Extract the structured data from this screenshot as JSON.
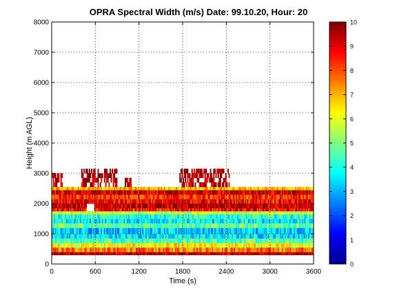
{
  "chart_data": {
    "type": "heatmap",
    "title": "OPRA Spectral Width (m/s)  Date: 99.10.20, Hour: 20",
    "xlabel": "Time (s)",
    "ylabel": "Height (m AGL)",
    "xlim": [
      0,
      3600
    ],
    "ylim": [
      0,
      8000
    ],
    "x_ticks": [
      "0",
      "600",
      "1200",
      "1800",
      "2400",
      "3000",
      "3600"
    ],
    "y_ticks": [
      "0",
      "1000",
      "2000",
      "3000",
      "4000",
      "5000",
      "6000",
      "7000",
      "8000"
    ],
    "grid": true,
    "colormap": "jet",
    "colorbar": {
      "range": [
        0,
        10
      ],
      "ticks": [
        "0",
        "1",
        "2",
        "3",
        "4",
        "5",
        "6",
        "7",
        "8",
        "9",
        "10"
      ]
    },
    "height_bands": [
      {
        "y0": 300,
        "y1": 400,
        "value": 9.5
      },
      {
        "y0": 400,
        "y1": 550,
        "value": 7.6
      },
      {
        "y0": 550,
        "y1": 700,
        "value": 6.2
      },
      {
        "y0": 700,
        "y1": 850,
        "value": 4.6
      },
      {
        "y0": 850,
        "y1": 1000,
        "value": 3.5
      },
      {
        "y0": 1000,
        "y1": 1200,
        "value": 3.2
      },
      {
        "y0": 1200,
        "y1": 1350,
        "value": 4.8
      },
      {
        "y0": 1350,
        "y1": 1500,
        "value": 3.6
      },
      {
        "y0": 1500,
        "y1": 1650,
        "value": 4.2
      },
      {
        "y0": 1650,
        "y1": 1750,
        "value": 5.6
      },
      {
        "y0": 1750,
        "y1": 1850,
        "value": 8.6
      },
      {
        "y0": 1850,
        "y1": 2000,
        "value": 9.4
      },
      {
        "y0": 2000,
        "y1": 2150,
        "value": 8.8
      },
      {
        "y0": 2150,
        "y1": 2300,
        "value": 8.2
      },
      {
        "y0": 2300,
        "y1": 2450,
        "value": 9.2
      },
      {
        "y0": 2450,
        "y1": 2550,
        "value": 6.8
      },
      {
        "y0": 2550,
        "y1": 2700,
        "value": 9.4
      },
      {
        "y0": 2700,
        "y1": 2850,
        "value": 9.7
      },
      {
        "y0": 2850,
        "y1": 3000,
        "value": 9.8
      },
      {
        "y0": 3000,
        "y1": 3150,
        "value": 9.9
      }
    ],
    "coverage": [
      {
        "x0": 0,
        "x1": 3600,
        "y0": 300,
        "y1": 2550
      },
      {
        "x0": 0,
        "x1": 150,
        "y0": 2550,
        "y1": 3000
      },
      {
        "x0": 400,
        "x1": 900,
        "y0": 2550,
        "y1": 3150
      },
      {
        "x0": 1000,
        "x1": 1100,
        "y0": 2550,
        "y1": 2850
      },
      {
        "x0": 1750,
        "x1": 2450,
        "y0": 2550,
        "y1": 3150
      },
      {
        "x0": 3430,
        "x1": 3460,
        "y0": 2850,
        "y1": 3000
      }
    ],
    "gaps": [
      {
        "x0": 480,
        "x1": 580,
        "y0": 1800,
        "y1": 1950
      },
      {
        "x0": 2450,
        "x1": 3600,
        "y0": 2550,
        "y1": 3150
      }
    ]
  }
}
